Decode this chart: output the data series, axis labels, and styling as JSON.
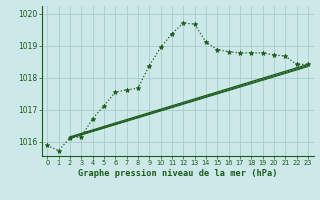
{
  "title": "Graphe pression niveau de la mer (hPa)",
  "bg_color": "#cce8e8",
  "grid_color": "#aacccc",
  "line_color": "#1a5c1a",
  "xlim": [
    -0.5,
    23.5
  ],
  "ylim": [
    1015.55,
    1020.25
  ],
  "yticks": [
    1016,
    1017,
    1018,
    1019,
    1020
  ],
  "xticks": [
    0,
    1,
    2,
    3,
    4,
    5,
    6,
    7,
    8,
    9,
    10,
    11,
    12,
    13,
    14,
    15,
    16,
    17,
    18,
    19,
    20,
    21,
    22,
    23
  ],
  "curve1_x": [
    0,
    1,
    2,
    3,
    4,
    5,
    6,
    7,
    8,
    9,
    10,
    11,
    12,
    13,
    14,
    15,
    16,
    17,
    18,
    19,
    20,
    21,
    22,
    23
  ],
  "curve1_y": [
    1015.88,
    1015.72,
    1016.12,
    1016.15,
    1016.72,
    1017.12,
    1017.55,
    1017.62,
    1017.68,
    1018.38,
    1018.95,
    1019.38,
    1019.72,
    1019.68,
    1019.12,
    1018.88,
    1018.82,
    1018.78,
    1018.78,
    1018.78,
    1018.72,
    1018.68,
    1018.42,
    1018.42
  ],
  "line2_x": [
    2,
    23
  ],
  "line2_y": [
    1016.15,
    1018.42
  ],
  "line3_x": [
    2,
    23
  ],
  "line3_y": [
    1016.12,
    1018.38
  ],
  "line4_x": [
    2,
    23
  ],
  "line4_y": [
    1016.1,
    1018.35
  ]
}
